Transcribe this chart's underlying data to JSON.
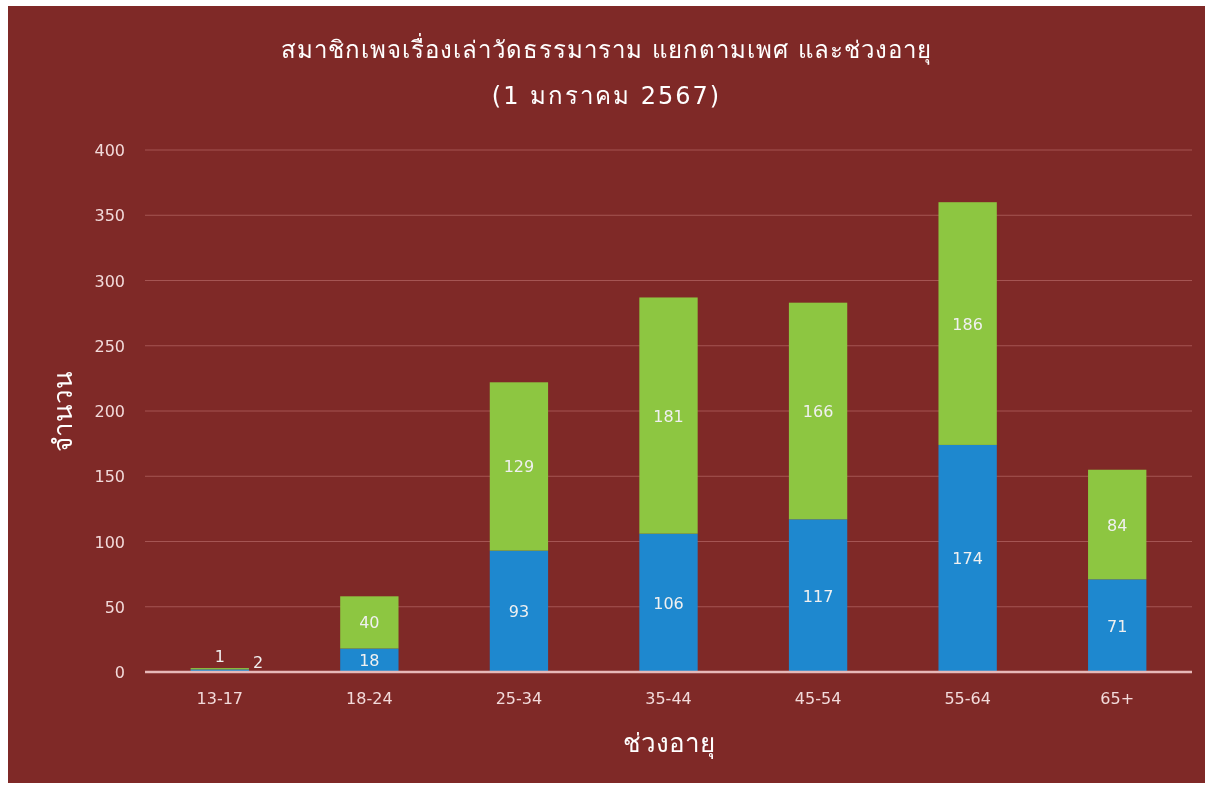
{
  "chart_data": {
    "type": "bar",
    "title": "สมาชิกเพจเรื่องเล่าวัดธรรมาราม แยกตามเพศ และช่วงอายุ",
    "subtitle": "(1 มกราคม 2567)",
    "xlabel": "ช่วงอายุ",
    "ylabel": "จำนวน",
    "categories": [
      "13-17",
      "18-24",
      "25-34",
      "35-44",
      "45-54",
      "55-64",
      "65+"
    ],
    "series": [
      {
        "color": "#1e88cf",
        "values": [
          2,
          18,
          93,
          106,
          117,
          174,
          71
        ]
      },
      {
        "color": "#8dc641",
        "values": [
          1,
          40,
          129,
          181,
          166,
          186,
          84
        ]
      }
    ],
    "stacked": true,
    "data_labels": true,
    "grid": "y",
    "ylim": [
      0,
      400
    ],
    "yticks": [
      0,
      50,
      100,
      150,
      200,
      250,
      300,
      350,
      400
    ]
  }
}
